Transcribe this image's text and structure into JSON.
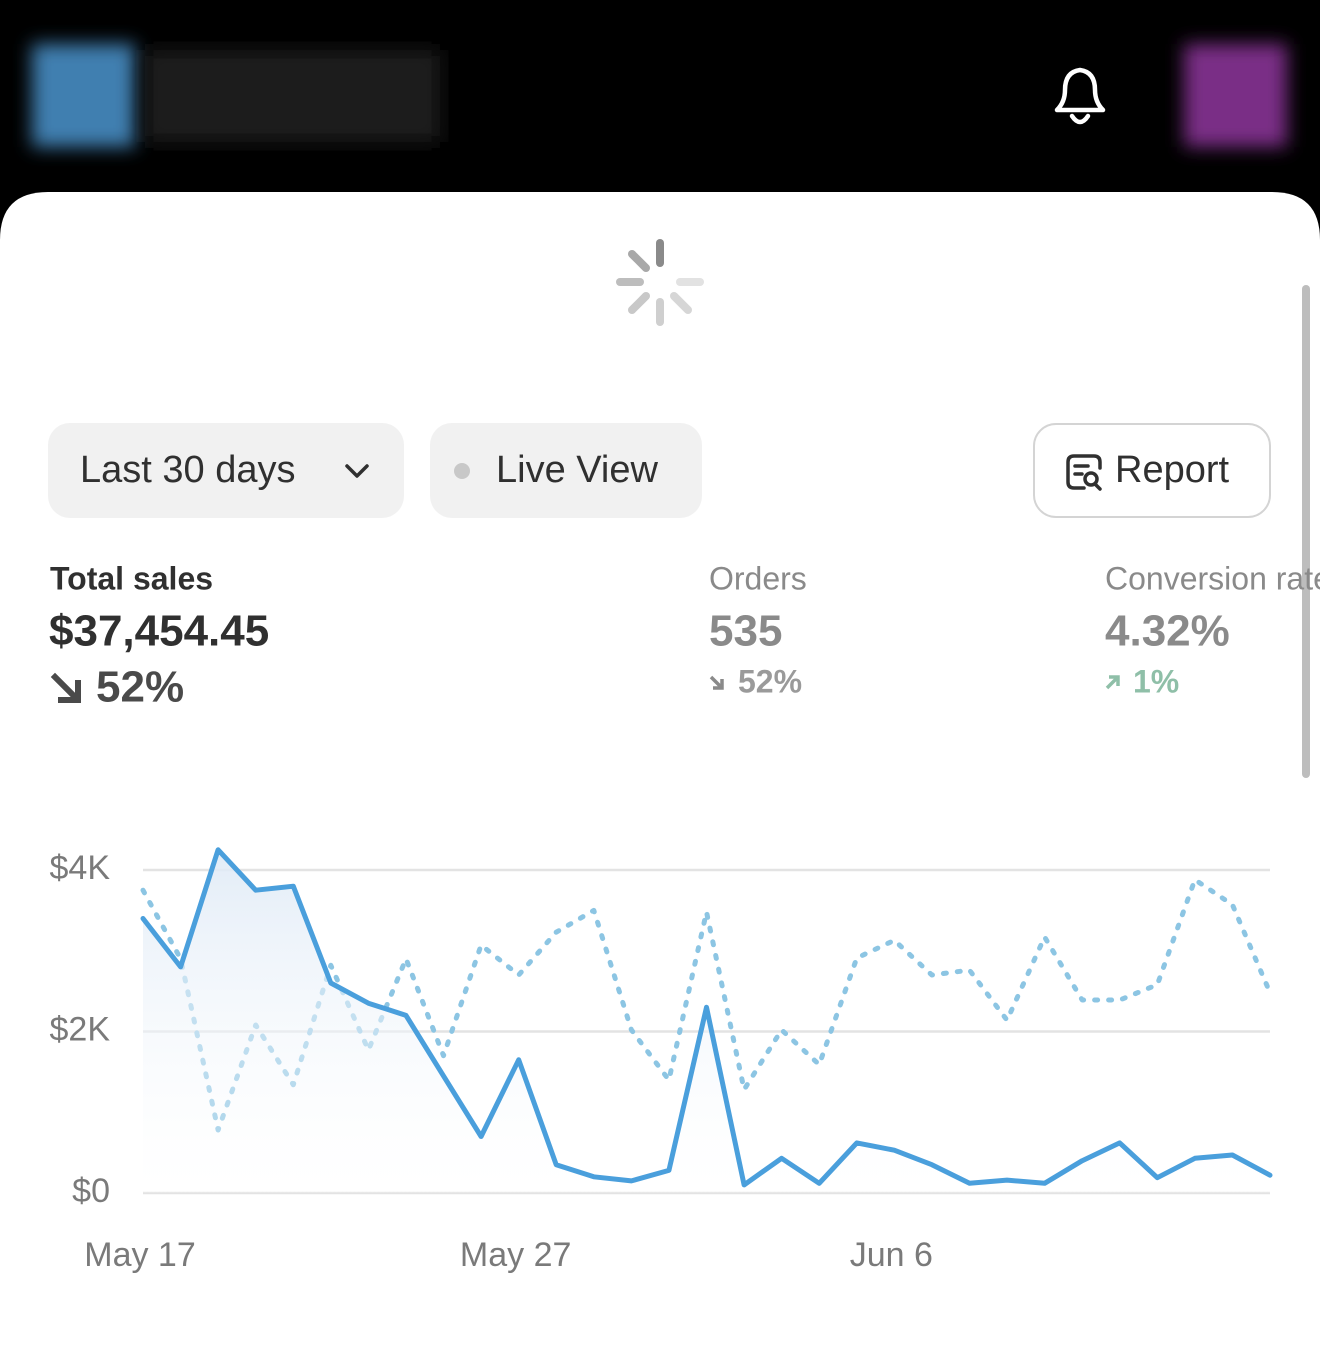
{
  "controls": {
    "date_range": "Last 30 days",
    "live_view": "Live View",
    "report": "Report"
  },
  "metrics": [
    {
      "label": "Total sales",
      "value": "$37,454.45",
      "change": "52%"
    },
    {
      "label": "Orders",
      "value": "535",
      "change": "52%"
    },
    {
      "label": "Conversion rate",
      "value": "4.32%",
      "change": "1%"
    }
  ],
  "chart_data": {
    "type": "line",
    "categories": [
      "May 17",
      null,
      null,
      null,
      null,
      null,
      null,
      null,
      null,
      null,
      "May 27",
      null,
      null,
      null,
      null,
      null,
      null,
      null,
      null,
      null,
      "Jun 6",
      null,
      null,
      null,
      null,
      null,
      null,
      null,
      null,
      null,
      null
    ],
    "series": [
      {
        "color": "#4a9fdc",
        "style": "solid",
        "area": true,
        "values": [
          3400,
          2800,
          4250,
          3750,
          3800,
          2600,
          2350,
          2200,
          1450,
          700,
          1650,
          350,
          200,
          150,
          280,
          2300,
          100,
          430,
          120,
          620,
          530,
          350,
          120,
          160,
          120,
          400,
          620,
          190,
          430,
          470,
          220
        ]
      },
      {
        "color": "#8cc5e3",
        "style": "dotted",
        "values": [
          3750,
          2900,
          780,
          2080,
          1340,
          2820,
          1770,
          2900,
          1700,
          3070,
          2700,
          3230,
          3500,
          2020,
          1400,
          3480,
          1280,
          2020,
          1590,
          2910,
          3130,
          2700,
          2760,
          2140,
          3170,
          2390,
          2390,
          2580,
          3880,
          3570,
          2480
        ]
      }
    ],
    "ylim": [
      0,
      4000
    ],
    "yticks": [
      {
        "value": 0,
        "label": "$0"
      },
      {
        "value": 2000,
        "label": "$2K"
      },
      {
        "value": 4000,
        "label": "$4K"
      }
    ],
    "grid": true
  }
}
